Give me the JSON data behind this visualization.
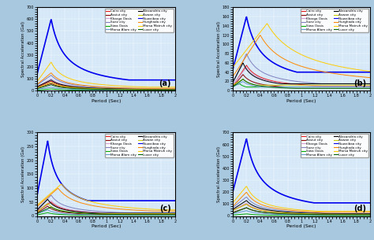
{
  "cities": [
    "Cairo city",
    "Assiut city",
    "Kharga Oasis",
    "Suez city",
    "Siwa Oasis",
    "Marsa Alam city",
    "Alexandria city",
    "Aswan city",
    "Nuweibaa city",
    "Hurghada city",
    "Marsa Matruh city",
    "Luxor city"
  ],
  "colors": [
    "#e41a1c",
    "#8b0000",
    "#d4a0d4",
    "#8080c0",
    "#00aa00",
    "#6699cc",
    "#000000",
    "#cccc00",
    "#0000ee",
    "#ff8800",
    "#ffcc00",
    "#006400"
  ],
  "panel_labels": [
    "(a)",
    "(b)",
    "(c)",
    "(d)"
  ],
  "background_color": "#d4e8f8",
  "grid_color": "#ffffff",
  "xlabel": "Period (Sec)",
  "ylabel": "Spectral Acceleration (Gal)"
}
